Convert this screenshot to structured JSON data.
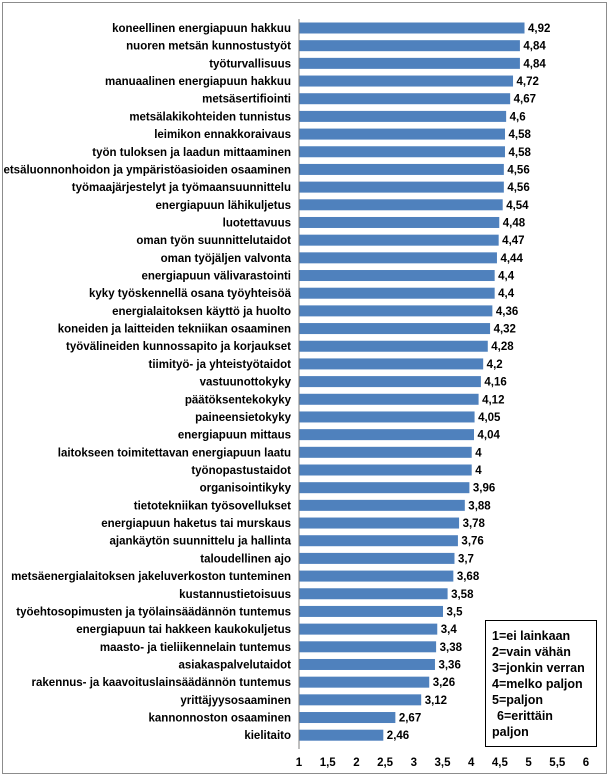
{
  "chart_data": {
    "type": "bar",
    "orientation": "horizontal",
    "categories": [
      "koneellinen energiapuun hakkuu",
      "nuoren metsän kunnostustyöt",
      "työturvallisuus",
      "manuaalinen energiapuun hakkuu",
      "metsäsertifiointi",
      "metsälakikohteiden tunnistus",
      "leimikon ennakkoraivaus",
      "työn tuloksen ja laadun mittaaminen",
      "metsäluonnonhoidon ja ympäristöasioiden osaaminen",
      "työmaajärjestelyt ja työmaansuunnittelu",
      "energiapuun lähikuljetus",
      "luotettavuus",
      "oman työn suunnittelutaidot",
      "oman työjäljen valvonta",
      "energiapuun välivarastointi",
      "kyky työskennellä osana työyhteisöä",
      "energialaitoksen käyttö ja huolto",
      "koneiden ja laitteiden tekniikan osaaminen",
      "työvälineiden kunnossapito ja korjaukset",
      "tiimityö- ja yhteistyötaidot",
      "vastuunottokyky",
      "päätöksentekokyky",
      "paineensietokyky",
      "energiapuun mittaus",
      "laitokseen toimitettavan energiapuun laatu",
      "työnopastustaidot",
      "organisointikyky",
      "tietotekniikan työsovellukset",
      "energiapuun haketus tai murskaus",
      "ajankäytön suunnittelu ja hallinta",
      "taloudellinen ajo",
      "metsäenergialaitoksen jakeluverkoston tunteminen",
      "kustannustietoisuus",
      "työehtosopimusten ja työlainsäädännön tuntemus",
      "energiapuun tai hakkeen kaukokuljetus",
      "maasto- ja tieliikennelain tuntemus",
      "asiakaspalvelutaidot",
      "rakennus- ja kaavoituslainsäädännön tuntemus",
      "yrittäjyysosaaminen",
      "kannonnoston osaaminen",
      "kielitaito"
    ],
    "values": [
      4.92,
      4.84,
      4.84,
      4.72,
      4.67,
      4.6,
      4.58,
      4.58,
      4.56,
      4.56,
      4.54,
      4.48,
      4.47,
      4.44,
      4.4,
      4.4,
      4.36,
      4.32,
      4.28,
      4.2,
      4.16,
      4.12,
      4.05,
      4.04,
      4,
      4,
      3.96,
      3.88,
      3.78,
      3.76,
      3.7,
      3.68,
      3.58,
      3.5,
      3.4,
      3.38,
      3.36,
      3.26,
      3.12,
      2.67,
      2.46
    ],
    "value_labels": [
      "4,92",
      "4,84",
      "4,84",
      "4,72",
      "4,67",
      "4,6",
      "4,58",
      "4,58",
      "4,56",
      "4,56",
      "4,54",
      "4,48",
      "4,47",
      "4,44",
      "4,4",
      "4,4",
      "4,36",
      "4,32",
      "4,28",
      "4,2",
      "4,16",
      "4,12",
      "4,05",
      "4,04",
      "4",
      "4",
      "3,96",
      "3,88",
      "3,78",
      "3,76",
      "3,7",
      "3,68",
      "3,58",
      "3,5",
      "3,4",
      "3,38",
      "3,36",
      "3,26",
      "3,12",
      "2,67",
      "2,46"
    ],
    "xlim": [
      1,
      6
    ],
    "x_ticks": [
      1,
      1.5,
      2,
      2.5,
      3,
      3.5,
      4,
      4.5,
      5,
      5.5,
      6
    ],
    "x_tick_labels": [
      "1",
      "1,5",
      "2",
      "2,5",
      "3",
      "3,5",
      "4",
      "4,5",
      "5",
      "5,5",
      "6"
    ],
    "title": "",
    "xlabel": "",
    "ylabel": "",
    "grid": false,
    "bar_color": "#4f81bd",
    "legend": {
      "placement": "bottom-right",
      "lines": [
        "1=ei lainkaan",
        "2=vain vähän",
        "3=jonkin verran",
        "4=melko paljon",
        "5=paljon",
        "6=erittäin",
        "paljon"
      ]
    }
  }
}
